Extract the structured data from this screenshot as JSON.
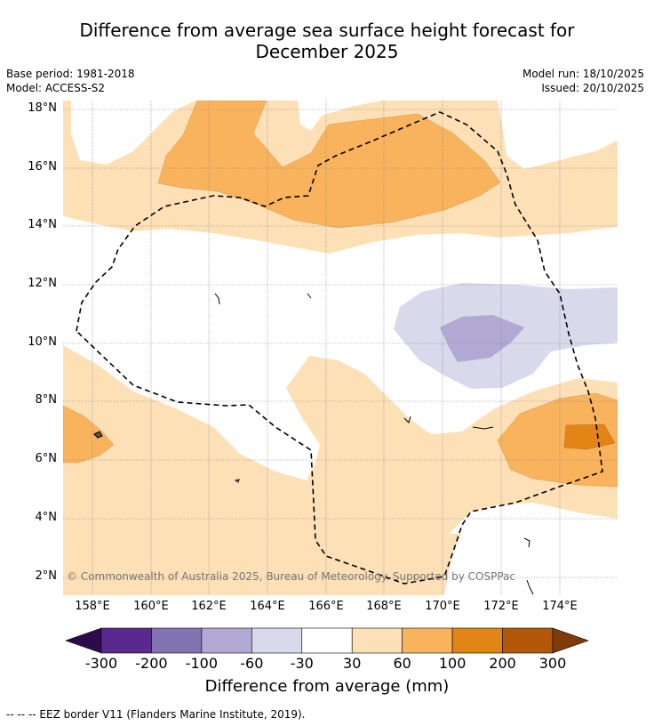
{
  "title_line1": "Difference from average sea surface height forecast for",
  "title_line2": "December 2025",
  "meta_left": [
    "Base period: 1981-2018",
    "Model: ACCESS-S2"
  ],
  "meta_right": [
    "Model run: 18/10/2025",
    "Issued: 20/10/2025"
  ],
  "lat_labels": [
    "18°N",
    "16°N",
    "14°N",
    "12°N",
    "10°N",
    "8°N",
    "6°N",
    "4°N",
    "2°N"
  ],
  "lon_labels": [
    "158°E",
    "160°E",
    "162°E",
    "164°E",
    "166°E",
    "168°E",
    "170°E",
    "172°E",
    "174°E"
  ],
  "colorbar": {
    "ticks": [
      "-300",
      "-200",
      "-100",
      "-60",
      "-30",
      "30",
      "60",
      "100",
      "200",
      "300"
    ],
    "colors": [
      "#2d0a4e",
      "#5b2890",
      "#8273b1",
      "#b1a9d3",
      "#d8d9ea",
      "#ffffff",
      "#fde0b6",
      "#f9b35d",
      "#e28516",
      "#b35806",
      "#7f3b08"
    ],
    "label": "Difference from average (mm)"
  },
  "copyright": "© Commonwealth of Australia 2025, Bureau of Meteorology. Supported by COSPPac",
  "footer": "--  --  -- EEZ border V11 (Flanders Marine Institute, 2019)."
}
